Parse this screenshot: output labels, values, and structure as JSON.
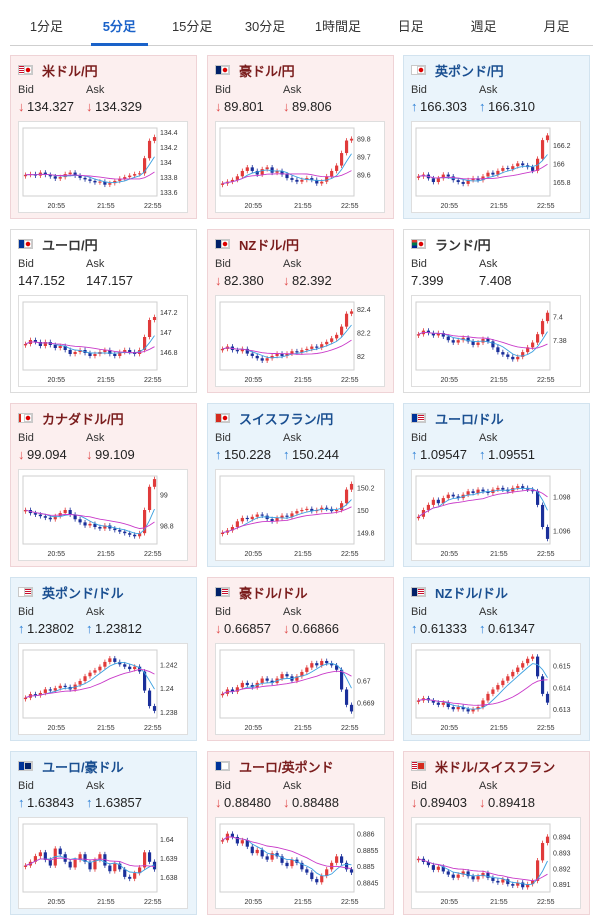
{
  "tabs": [
    {
      "label": "1分足",
      "active": false
    },
    {
      "label": "5分足",
      "active": true
    },
    {
      "label": "15分足",
      "active": false
    },
    {
      "label": "30分足",
      "active": false
    },
    {
      "label": "1時間足",
      "active": false
    },
    {
      "label": "日足",
      "active": false
    },
    {
      "label": "週足",
      "active": false
    },
    {
      "label": "月足",
      "active": false
    }
  ],
  "labels": {
    "bid": "Bid",
    "ask": "Ask"
  },
  "colors": {
    "accent": "#1a62c9",
    "down": "#e04b4b",
    "up": "#2b7fd6",
    "bull_candle": "#e03a3a",
    "bear_candle": "#1a2f9a",
    "ma_short": "#3aa0e0",
    "ma_long": "#c93ac9"
  },
  "pairs": [
    {
      "name": "米ドル/円",
      "flag": "us-jp",
      "dir": "down",
      "bid": "134.327",
      "ask": "134.329",
      "bid_arrow": "down",
      "ask_arrow": "down",
      "chart": {
        "x_ticks": [
          "20:55",
          "21:55",
          "22:55"
        ],
        "y_ticks": [
          "134.4",
          "134.2",
          "134",
          "133.8",
          "133.6"
        ],
        "y_range": [
          133.55,
          134.45
        ],
        "closes": [
          133.83,
          133.84,
          133.82,
          133.86,
          133.83,
          133.81,
          133.78,
          133.8,
          133.84,
          133.86,
          133.82,
          133.79,
          133.77,
          133.75,
          133.73,
          133.74,
          133.7,
          133.72,
          133.75,
          133.78,
          133.8,
          133.82,
          133.84,
          133.85,
          134.05,
          134.28,
          134.33
        ]
      }
    },
    {
      "name": "豪ドル/円",
      "flag": "au-jp",
      "dir": "down",
      "bid": "89.801",
      "ask": "89.806",
      "bid_arrow": "down",
      "ask_arrow": "down",
      "chart": {
        "x_ticks": [
          "20:55",
          "21:55",
          "22:55"
        ],
        "y_ticks": [
          "89.8",
          "89.7",
          "89.6"
        ],
        "y_range": [
          89.48,
          89.86
        ],
        "closes": [
          89.55,
          89.56,
          89.57,
          89.59,
          89.62,
          89.64,
          89.62,
          89.6,
          89.63,
          89.64,
          89.61,
          89.62,
          89.6,
          89.58,
          89.57,
          89.56,
          89.57,
          89.58,
          89.57,
          89.55,
          89.56,
          89.59,
          89.62,
          89.65,
          89.72,
          89.79,
          89.8
        ]
      }
    },
    {
      "name": "英ポンド/円",
      "flag": "gb-jp",
      "dir": "up",
      "bid": "166.303",
      "ask": "166.310",
      "bid_arrow": "up",
      "ask_arrow": "up",
      "chart": {
        "x_ticks": [
          "20:55",
          "21:55",
          "22:55"
        ],
        "y_ticks": [
          "166.2",
          "166",
          "165.8"
        ],
        "y_range": [
          165.65,
          166.38
        ],
        "closes": [
          165.86,
          165.88,
          165.84,
          165.8,
          165.84,
          165.88,
          165.86,
          165.82,
          165.8,
          165.78,
          165.82,
          165.84,
          165.82,
          165.86,
          165.9,
          165.88,
          165.92,
          165.95,
          165.94,
          165.97,
          166.0,
          165.98,
          165.96,
          165.92,
          166.05,
          166.25,
          166.3
        ]
      }
    },
    {
      "name": "ユーロ/円",
      "flag": "eu-jp",
      "dir": "neutral",
      "bid": "147.152",
      "ask": "147.157",
      "bid_arrow": "none",
      "ask_arrow": "none",
      "chart": {
        "x_ticks": [
          "20:55",
          "21:55",
          "22:55"
        ],
        "y_ticks": [
          "147.2",
          "147",
          "146.8"
        ],
        "y_range": [
          146.62,
          147.3
        ],
        "closes": [
          146.88,
          146.92,
          146.9,
          146.86,
          146.9,
          146.87,
          146.84,
          146.86,
          146.82,
          146.78,
          146.8,
          146.82,
          146.79,
          146.76,
          146.78,
          146.8,
          146.82,
          146.78,
          146.76,
          146.8,
          146.82,
          146.8,
          146.78,
          146.82,
          146.95,
          147.12,
          147.15
        ]
      }
    },
    {
      "name": "NZドル/円",
      "flag": "nz-jp",
      "dir": "down",
      "bid": "82.380",
      "ask": "82.392",
      "bid_arrow": "down",
      "ask_arrow": "down",
      "chart": {
        "x_ticks": [
          "20:55",
          "21:55",
          "22:55"
        ],
        "y_ticks": [
          "82.4",
          "82.2",
          "82"
        ],
        "y_range": [
          81.88,
          82.46
        ],
        "closes": [
          82.06,
          82.08,
          82.05,
          82.04,
          82.06,
          82.02,
          82.0,
          81.98,
          81.96,
          81.98,
          82.0,
          82.02,
          82.0,
          82.02,
          82.04,
          82.03,
          82.05,
          82.06,
          82.08,
          82.07,
          82.1,
          82.12,
          82.15,
          82.18,
          82.25,
          82.36,
          82.38
        ]
      }
    },
    {
      "name": "ランド/円",
      "flag": "za-jp",
      "dir": "neutral",
      "bid": "7.399",
      "ask": "7.408",
      "bid_arrow": "none",
      "ask_arrow": "none",
      "chart": {
        "x_ticks": [
          "20:55",
          "21:55",
          "22:55"
        ],
        "y_ticks": [
          "7.4",
          "7.38"
        ],
        "y_range": [
          7.355,
          7.412
        ],
        "closes": [
          7.385,
          7.388,
          7.386,
          7.384,
          7.386,
          7.383,
          7.38,
          7.378,
          7.38,
          7.382,
          7.379,
          7.376,
          7.378,
          7.381,
          7.379,
          7.374,
          7.37,
          7.368,
          7.366,
          7.364,
          7.366,
          7.37,
          7.374,
          7.378,
          7.385,
          7.396,
          7.403
        ]
      }
    },
    {
      "name": "カナダドル/円",
      "flag": "ca-jp",
      "dir": "down",
      "bid": "99.094",
      "ask": "99.109",
      "bid_arrow": "down",
      "ask_arrow": "down",
      "chart": {
        "x_ticks": [
          "20:55",
          "21:55",
          "22:55"
        ],
        "y_ticks": [
          "99",
          "98.8"
        ],
        "y_range": [
          98.68,
          99.12
        ],
        "closes": [
          98.9,
          98.88,
          98.87,
          98.86,
          98.85,
          98.84,
          98.86,
          98.88,
          98.9,
          98.87,
          98.84,
          98.82,
          98.8,
          98.81,
          98.79,
          98.78,
          98.8,
          98.78,
          98.77,
          98.76,
          98.75,
          98.74,
          98.73,
          98.75,
          98.9,
          99.05,
          99.1
        ]
      }
    },
    {
      "name": "スイスフラン/円",
      "flag": "ch-jp",
      "dir": "up",
      "bid": "150.228",
      "ask": "150.244",
      "bid_arrow": "up",
      "ask_arrow": "up",
      "chart": {
        "x_ticks": [
          "20:55",
          "21:55",
          "22:55"
        ],
        "y_ticks": [
          "150.2",
          "150",
          "149.8"
        ],
        "y_range": [
          149.7,
          150.3
        ],
        "closes": [
          149.8,
          149.82,
          149.85,
          149.9,
          149.93,
          149.92,
          149.94,
          149.96,
          149.95,
          149.92,
          149.9,
          149.93,
          149.95,
          149.94,
          149.97,
          149.99,
          150.0,
          150.01,
          149.99,
          150.0,
          150.02,
          150.01,
          149.99,
          150.0,
          150.06,
          150.18,
          150.23
        ]
      }
    },
    {
      "name": "ユーロ/ドル",
      "flag": "eu-us",
      "dir": "up",
      "bid": "1.09547",
      "ask": "1.09551",
      "bid_arrow": "up",
      "ask_arrow": "up",
      "chart": {
        "x_ticks": [
          "20:55",
          "21:55",
          "22:55"
        ],
        "y_ticks": [
          "1.098",
          "1.096"
        ],
        "y_range": [
          1.0952,
          1.0992
        ],
        "closes": [
          1.0968,
          1.0972,
          1.0975,
          1.0978,
          1.0976,
          1.0979,
          1.0981,
          1.098,
          1.0979,
          1.0981,
          1.0983,
          1.0982,
          1.0984,
          1.0983,
          1.0982,
          1.0984,
          1.0985,
          1.0984,
          1.0983,
          1.0985,
          1.0986,
          1.0985,
          1.0984,
          1.0983,
          1.0975,
          1.0962,
          1.0955
        ]
      }
    },
    {
      "name": "英ポンド/ドル",
      "flag": "gb-us",
      "dir": "up",
      "bid": "1.23802",
      "ask": "1.23812",
      "bid_arrow": "up",
      "ask_arrow": "up",
      "chart": {
        "x_ticks": [
          "20:55",
          "21:55",
          "22:55"
        ],
        "y_ticks": [
          "1.242",
          "1.24",
          "1.238"
        ],
        "y_range": [
          1.2375,
          1.2432
        ],
        "closes": [
          1.2392,
          1.2395,
          1.2394,
          1.2396,
          1.2399,
          1.2398,
          1.24,
          1.2402,
          1.2401,
          1.2399,
          1.2403,
          1.2406,
          1.241,
          1.2413,
          1.2415,
          1.2418,
          1.2422,
          1.2425,
          1.2422,
          1.242,
          1.2418,
          1.2416,
          1.2418,
          1.2414,
          1.2398,
          1.2385,
          1.2381
        ]
      }
    },
    {
      "name": "豪ドル/ドル",
      "flag": "au-us",
      "dir": "down",
      "bid": "0.66857",
      "ask": "0.66866",
      "bid_arrow": "down",
      "ask_arrow": "down",
      "chart": {
        "x_ticks": [
          "20:55",
          "21:55",
          "22:55"
        ],
        "y_ticks": [
          "0.67",
          "0.669"
        ],
        "y_range": [
          0.6683,
          0.6714
        ],
        "closes": [
          0.6694,
          0.6696,
          0.6695,
          0.6697,
          0.6699,
          0.6698,
          0.6697,
          0.6699,
          0.6701,
          0.67,
          0.6699,
          0.6701,
          0.6703,
          0.6702,
          0.67,
          0.6702,
          0.6704,
          0.6706,
          0.6708,
          0.6707,
          0.6709,
          0.6708,
          0.6707,
          0.6705,
          0.6696,
          0.6689,
          0.6686
        ]
      }
    },
    {
      "name": "NZドル/ドル",
      "flag": "nz-us",
      "dir": "up",
      "bid": "0.61333",
      "ask": "0.61347",
      "bid_arrow": "up",
      "ask_arrow": "up",
      "chart": {
        "x_ticks": [
          "20:55",
          "21:55",
          "22:55"
        ],
        "y_ticks": [
          "0.615",
          "0.614",
          "0.613"
        ],
        "y_range": [
          0.6126,
          0.6157
        ],
        "closes": [
          0.6134,
          0.6135,
          0.6134,
          0.6133,
          0.6132,
          0.6133,
          0.6131,
          0.613,
          0.6131,
          0.613,
          0.6129,
          0.613,
          0.6131,
          0.6134,
          0.6137,
          0.6139,
          0.6141,
          0.6143,
          0.6145,
          0.6147,
          0.6149,
          0.6151,
          0.6153,
          0.6154,
          0.6145,
          0.6137,
          0.6133
        ]
      }
    },
    {
      "name": "ユーロ/豪ドル",
      "flag": "eu-au",
      "dir": "up",
      "bid": "1.63843",
      "ask": "1.63857",
      "bid_arrow": "up",
      "ask_arrow": "up",
      "chart": {
        "x_ticks": [
          "20:55",
          "21:55",
          "22:55"
        ],
        "y_ticks": [
          "1.64",
          "1.639",
          "1.638"
        ],
        "y_range": [
          1.6372,
          1.6408
        ],
        "closes": [
          1.6386,
          1.6388,
          1.6391,
          1.6393,
          1.6389,
          1.6386,
          1.6395,
          1.6392,
          1.6388,
          1.6385,
          1.6389,
          1.6392,
          1.6388,
          1.6384,
          1.6389,
          1.6392,
          1.6386,
          1.6383,
          1.6387,
          1.6384,
          1.638,
          1.6379,
          1.6382,
          1.6385,
          1.6393,
          1.6388,
          1.6384
        ]
      }
    },
    {
      "name": "ユーロ/英ポンド",
      "flag": "eu-gb",
      "dir": "down",
      "bid": "0.88480",
      "ask": "0.88488",
      "bid_arrow": "down",
      "ask_arrow": "down",
      "chart": {
        "x_ticks": [
          "20:55",
          "21:55",
          "22:55"
        ],
        "y_ticks": [
          "0.886",
          "0.8855",
          "0.885",
          "0.8845"
        ],
        "y_range": [
          0.8842,
          0.8863
        ],
        "closes": [
          0.8858,
          0.886,
          0.8859,
          0.8857,
          0.8858,
          0.8856,
          0.8854,
          0.8855,
          0.8853,
          0.8852,
          0.8854,
          0.8853,
          0.8851,
          0.885,
          0.8852,
          0.8851,
          0.8849,
          0.8848,
          0.8846,
          0.8845,
          0.8847,
          0.8849,
          0.8851,
          0.8853,
          0.8851,
          0.8849,
          0.8848
        ]
      }
    },
    {
      "name": "米ドル/スイスフラン",
      "flag": "us-ch",
      "dir": "down",
      "bid": "0.89403",
      "ask": "0.89418",
      "bid_arrow": "down",
      "ask_arrow": "down",
      "chart": {
        "x_ticks": [
          "20:55",
          "21:55",
          "22:55"
        ],
        "y_ticks": [
          "0.894",
          "0.893",
          "0.892",
          "0.891"
        ],
        "y_range": [
          0.8905,
          0.8948
        ],
        "closes": [
          0.8926,
          0.8924,
          0.8922,
          0.8919,
          0.8921,
          0.8918,
          0.8916,
          0.8914,
          0.8916,
          0.8918,
          0.8915,
          0.8913,
          0.8915,
          0.8917,
          0.8914,
          0.8912,
          0.8911,
          0.8913,
          0.891,
          0.8909,
          0.8911,
          0.8908,
          0.891,
          0.8912,
          0.8925,
          0.8936,
          0.894
        ]
      }
    }
  ]
}
